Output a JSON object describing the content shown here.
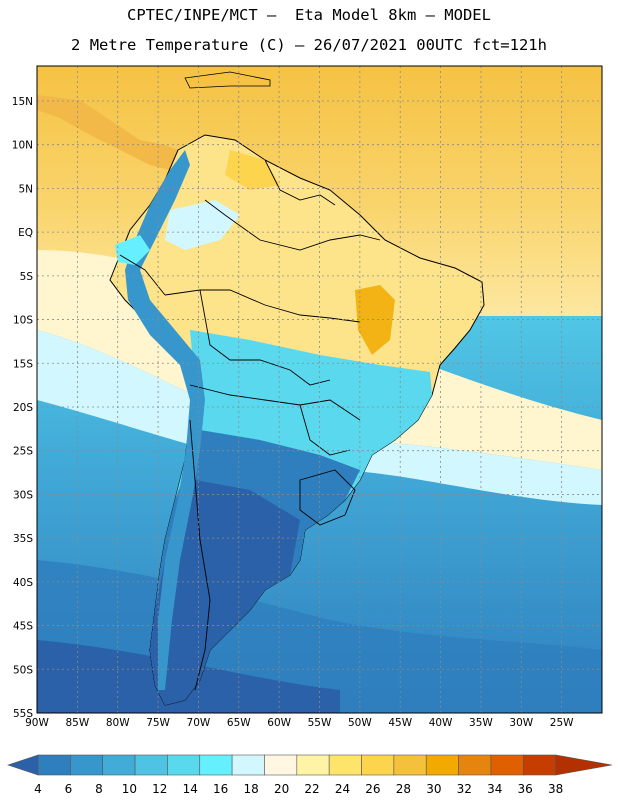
{
  "title": {
    "line1": "CPTEC/INPE/MCT –  Eta Model 8km – MODEL",
    "line2": "2 Metre Temperature (C) – 26/07/2021 00UTC fct=121h"
  },
  "map": {
    "lon_range": [
      -90,
      -20
    ],
    "lat_range": [
      -55,
      19
    ],
    "lon_ticks": [
      "90W",
      "85W",
      "80W",
      "75W",
      "70W",
      "65W",
      "60W",
      "55W",
      "50W",
      "45W",
      "40W",
      "35W",
      "30W",
      "25W"
    ],
    "lat_ticks": [
      "15N",
      "10N",
      "5N",
      "EQ",
      "5S",
      "10S",
      "15S",
      "20S",
      "25S",
      "30S",
      "35S",
      "40S",
      "45S",
      "50S",
      "55S"
    ],
    "land_color": "#2e6fb5",
    "ocean_north_color": "#f5c242",
    "ocean_mid_color": "#fff6cf",
    "ocean_south_color": "#4ad6ee"
  },
  "colorbar": {
    "labels": [
      "4",
      "6",
      "8",
      "10",
      "12",
      "14",
      "16",
      "18",
      "20",
      "22",
      "24",
      "26",
      "28",
      "30",
      "32",
      "34",
      "36",
      "38"
    ],
    "colors": [
      "#2a61a8",
      "#2f7fbe",
      "#3797cc",
      "#42abd8",
      "#50c3e4",
      "#5ad8ee",
      "#66f0ff",
      "#d2f7ff",
      "#fff7e2",
      "#fff3a6",
      "#ffe46c",
      "#fdd44e",
      "#f5c03c",
      "#f2aa00",
      "#e5840f",
      "#de6000",
      "#c53e00",
      "#b33000"
    ]
  }
}
